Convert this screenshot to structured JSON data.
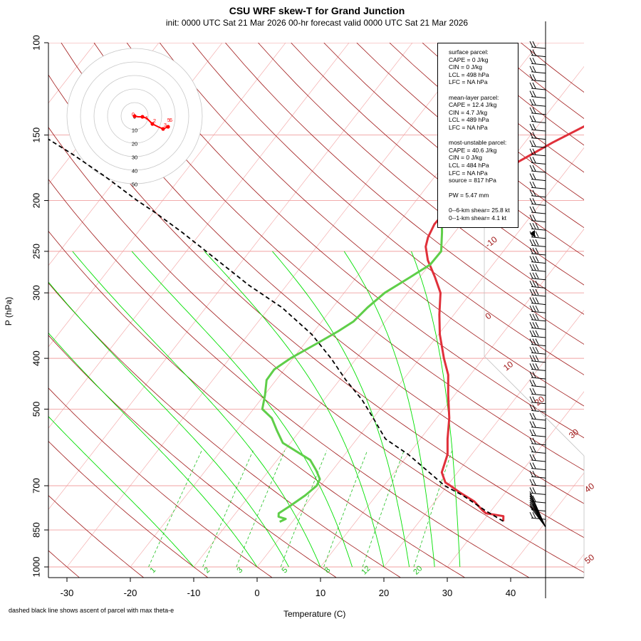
{
  "title": "CSU WRF skew-T for Grand Junction",
  "subtitle": "init: 0000 UTC Sat 21 Mar 2026     00-hr forecast valid 0000 UTC Sat 21 Mar 2026",
  "footnote": "dashed black line shows ascent of parcel with max theta-e",
  "chart_data": {
    "type": "line",
    "xlabel": "Temperature (C)",
    "ylabel": "P (hPa)",
    "xlim": [
      -33,
      52
    ],
    "ylim": [
      1000,
      100
    ],
    "y_scale": "log",
    "x_ticks": [
      -30,
      -20,
      -10,
      0,
      10,
      20,
      30,
      40
    ],
    "y_ticks": [
      1000,
      850,
      700,
      500,
      400,
      300,
      250,
      200,
      150,
      100
    ],
    "y_ticks_draw": [
      {
        "p": 1000,
        "label": "1000"
      },
      {
        "p": 850,
        "label": "850"
      },
      {
        "p": 700,
        "label": "700"
      },
      {
        "p": 500,
        "label": "500"
      },
      {
        "p": 400,
        "label": "400"
      },
      {
        "p": 300,
        "label": "300"
      },
      {
        "p": 250,
        "label": "250"
      },
      {
        "p": 200,
        "label": "200"
      },
      {
        "p": 150,
        "label": "150"
      },
      {
        "p": 100,
        "label": "100"
      }
    ],
    "isobars_hpa": [
      1000,
      850,
      700,
      500,
      400,
      300,
      250,
      200,
      150,
      100
    ],
    "dry_adiabat_labels": [
      {
        "label": "-10",
        "x": 692,
        "y": 343
      },
      {
        "label": "0",
        "x": 688,
        "y": 447
      },
      {
        "label": "10",
        "x": 716,
        "y": 517
      },
      {
        "label": "20",
        "x": 760,
        "y": 566
      },
      {
        "label": "30",
        "x": 808,
        "y": 612
      },
      {
        "label": "40",
        "x": 830,
        "y": 688
      },
      {
        "label": "50",
        "x": 830,
        "y": 788
      }
    ],
    "mixing_ratio_labels": [
      {
        "label": "1",
        "x": 217,
        "y": 803
      },
      {
        "label": "2",
        "x": 293,
        "y": 803
      },
      {
        "label": "3",
        "x": 339,
        "y": 803
      },
      {
        "label": "5",
        "x": 402,
        "y": 803
      },
      {
        "label": "8",
        "x": 462,
        "y": 803
      },
      {
        "label": "12",
        "x": 516,
        "y": 803
      },
      {
        "label": "20",
        "x": 589,
        "y": 803
      }
    ],
    "series": [
      {
        "name": "temperature",
        "color": "#e0303a",
        "data": [
          [
            33.2,
            818
          ],
          [
            32.6,
            800
          ],
          [
            29.5,
            790
          ],
          [
            28.6,
            780
          ],
          [
            26.2,
            750
          ],
          [
            22.7,
            720
          ],
          [
            20.5,
            700
          ],
          [
            19.3,
            690
          ],
          [
            17.5,
            660
          ],
          [
            16.2,
            610
          ],
          [
            14.3,
            570
          ],
          [
            12.0,
            520
          ],
          [
            9.0,
            470
          ],
          [
            6.5,
            430
          ],
          [
            3.8,
            400
          ],
          [
            0.2,
            360
          ],
          [
            -2.3,
            330
          ],
          [
            -4.8,
            300
          ],
          [
            -7.6,
            280
          ],
          [
            -10.8,
            260
          ],
          [
            -12.8,
            245
          ],
          [
            -13.6,
            235
          ],
          [
            -14.2,
            222
          ],
          [
            -14.0,
            205
          ],
          [
            -12.9,
            193
          ],
          [
            -10.8,
            180
          ],
          [
            -8.5,
            168
          ],
          [
            -5.6,
            155
          ],
          [
            -2.2,
            143
          ],
          [
            -1.6,
            130
          ],
          [
            0.3,
            115
          ],
          [
            2.2,
            104
          ]
        ]
      },
      {
        "name": "dewpoint",
        "color": "#5fce49",
        "data": [
          [
            -2.0,
            820
          ],
          [
            -1.4,
            810
          ],
          [
            -2.8,
            802
          ],
          [
            -3.2,
            790
          ],
          [
            -2.3,
            765
          ],
          [
            -1.2,
            730
          ],
          [
            -0.6,
            700
          ],
          [
            -0.9,
            680
          ],
          [
            -2.5,
            655
          ],
          [
            -4.8,
            625
          ],
          [
            -11.2,
            580
          ],
          [
            -13.6,
            550
          ],
          [
            -16.0,
            520
          ],
          [
            -18.6,
            500
          ],
          [
            -19.9,
            470
          ],
          [
            -21.5,
            440
          ],
          [
            -21.6,
            420
          ],
          [
            -20.4,
            400
          ],
          [
            -18.1,
            375
          ],
          [
            -16.2,
            355
          ],
          [
            -15.0,
            340
          ],
          [
            -14.5,
            320
          ],
          [
            -13.6,
            300
          ],
          [
            -11.5,
            280
          ],
          [
            -9.9,
            265
          ],
          [
            -9.8,
            250
          ],
          [
            -12.0,
            230
          ],
          [
            -14.6,
            210
          ],
          [
            -17.2,
            193
          ],
          [
            -18.6,
            180
          ]
        ]
      },
      {
        "name": "parcel",
        "color": "#000000",
        "dash": "6,4",
        "data": [
          [
            33.2,
            818
          ],
          [
            29.0,
            780
          ],
          [
            23.6,
            730
          ],
          [
            19.6,
            700
          ],
          [
            15.5,
            660
          ],
          [
            10.0,
            610
          ],
          [
            4.5,
            570
          ],
          [
            0.0,
            520
          ],
          [
            -4.0,
            480
          ],
          [
            -9.0,
            440
          ],
          [
            -14.0,
            400
          ],
          [
            -20.0,
            360
          ],
          [
            -28.0,
            320
          ],
          [
            -36.0,
            290
          ],
          [
            -44.0,
            260
          ],
          [
            -53.0,
            230
          ],
          [
            -60.0,
            210
          ],
          [
            -64.0,
            200
          ],
          [
            -72.0,
            180
          ],
          [
            -80.0,
            163
          ],
          [
            -90.0,
            145
          ],
          [
            -102.0,
            128
          ],
          [
            -113.0,
            115
          ],
          [
            -118.0,
            110
          ],
          [
            -124.0,
            105
          ]
        ]
      }
    ]
  },
  "hodograph": {
    "ring_labels": [
      "0",
      "10",
      "20",
      "30",
      "40",
      "50"
    ],
    "point_labels": [
      "0",
      "1",
      "2",
      "3",
      "5",
      "6"
    ]
  },
  "legend": {
    "lines": [
      "surface parcel:",
      "CAPE = 0 J/kg",
      "CIN = 0 J/kg",
      "LCL = 498 hPa",
      "LFC = NA hPa",
      "",
      "mean-layer parcel:",
      "CAPE = 12.4 J/kg",
      "CIN = 4.7 J/kg",
      "LCL = 489 hPa",
      "LFC = NA hPa",
      "",
      "most-unstable parcel:",
      "CAPE = 40.6 J/kg",
      "CIN = 0 J/kg",
      "LCL = 484 hPa",
      "LFC = NA hPa",
      "source = 817 hPa",
      "",
      "PW =  5.47 mm",
      "",
      "0--6-km shear= 25.8 kt",
      "0--1-km shear= 4.1 kt"
    ]
  },
  "colors": {
    "isotherm": "#f2a0a0",
    "dry_adiabat": "#a01818",
    "moist_adiabat": "#00e000",
    "mixing_ratio": "#20c020",
    "isobar": "#f0a0a0"
  }
}
